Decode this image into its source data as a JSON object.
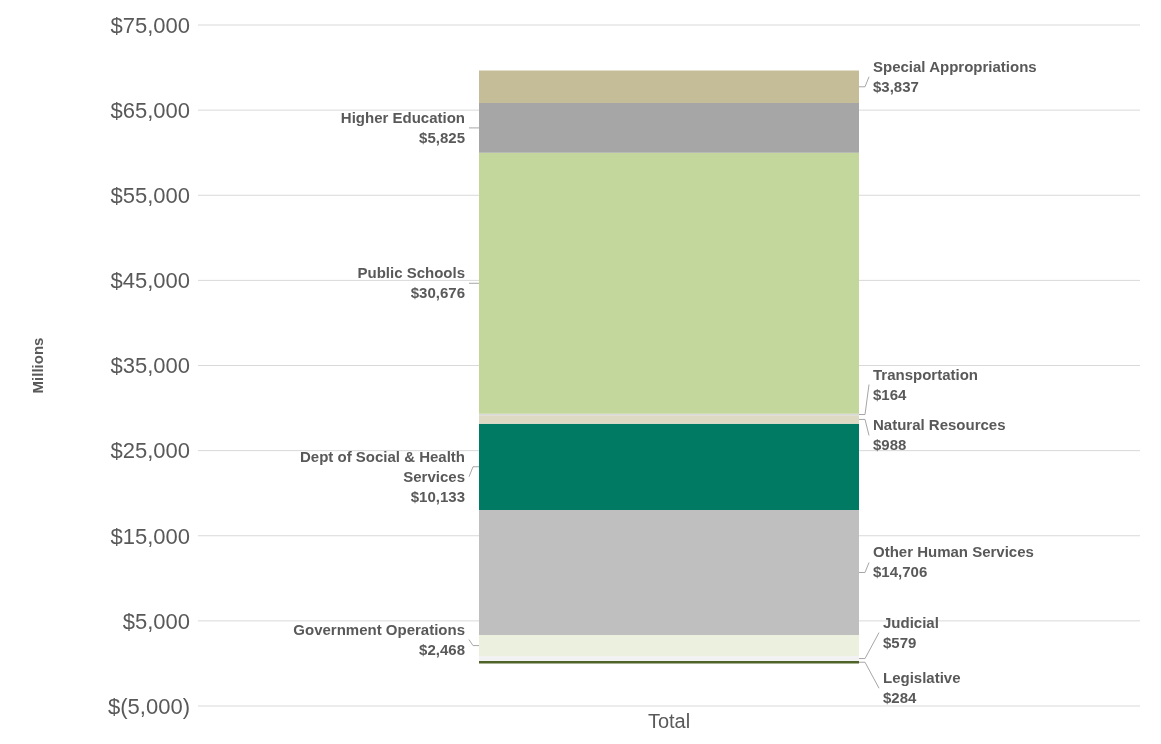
{
  "chart_data": {
    "type": "bar",
    "stacked": true,
    "ylabel": "Millions",
    "categories": [
      "Total"
    ],
    "ylim": [
      -5000,
      75000
    ],
    "yticks": [
      {
        "value": -5000,
        "label": "$(5,000)"
      },
      {
        "value": 5000,
        "label": "$5,000"
      },
      {
        "value": 15000,
        "label": "$15,000"
      },
      {
        "value": 25000,
        "label": "$25,000"
      },
      {
        "value": 35000,
        "label": "$35,000"
      },
      {
        "value": 45000,
        "label": "$45,000"
      },
      {
        "value": 55000,
        "label": "$55,000"
      },
      {
        "value": 65000,
        "label": "$65,000"
      },
      {
        "value": 75000,
        "label": "$75,000"
      }
    ],
    "grid": "y",
    "legend": false,
    "series": [
      {
        "name": "Legislative",
        "color": "#4f6228",
        "values": [
          284
        ],
        "value_labels": [
          "$284"
        ]
      },
      {
        "name": "Judicial",
        "color": "#f2f2f2",
        "values": [
          579
        ],
        "value_labels": [
          "$579"
        ]
      },
      {
        "name": "Government Operations",
        "color": "#ebf1de",
        "values": [
          2468
        ],
        "value_labels": [
          "$2,468"
        ]
      },
      {
        "name": "Other Human Services",
        "color": "#bfbfbf",
        "values": [
          14706
        ],
        "value_labels": [
          "$14,706"
        ]
      },
      {
        "name": "Dept of Social & Health Services",
        "color": "#007a63",
        "values": [
          10133
        ],
        "value_labels": [
          "$10,133"
        ]
      },
      {
        "name": "Natural Resources",
        "color": "#ddd9c3",
        "values": [
          988
        ],
        "value_labels": [
          "$988"
        ]
      },
      {
        "name": "Transportation",
        "color": "#d9d9d9",
        "values": [
          164
        ],
        "value_labels": [
          "$164"
        ]
      },
      {
        "name": "Public Schools",
        "color": "#c3d69b",
        "values": [
          30676
        ],
        "value_labels": [
          "$30,676"
        ]
      },
      {
        "name": "Higher Education",
        "color": "#a6a6a6",
        "values": [
          5825
        ],
        "value_labels": [
          "$5,825"
        ]
      },
      {
        "name": "Special Appropriations",
        "color": "#c4bd97",
        "values": [
          3837
        ],
        "value_labels": [
          "$3,837"
        ]
      }
    ]
  }
}
